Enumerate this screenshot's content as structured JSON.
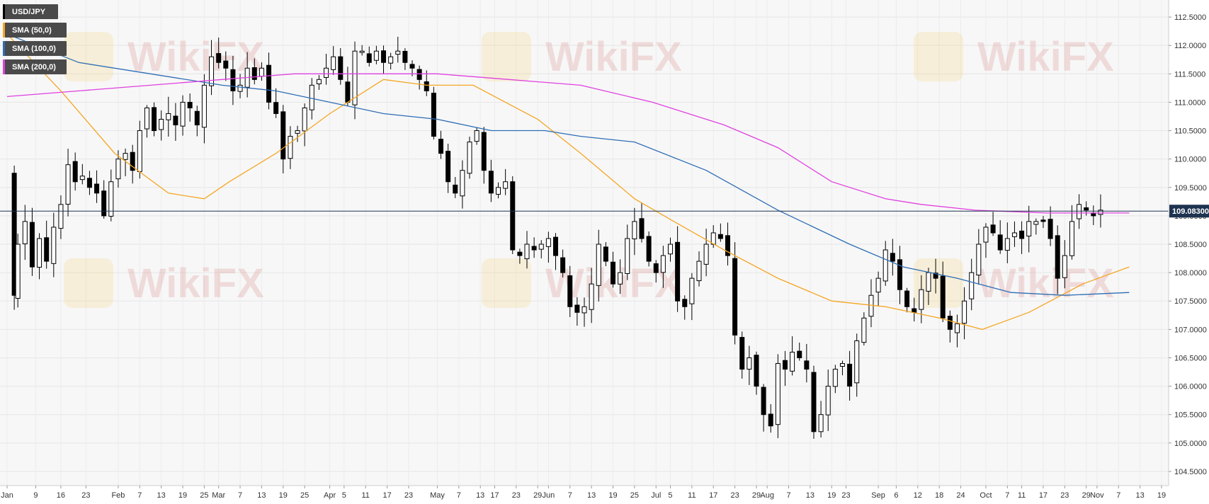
{
  "legend": {
    "symbol": "USD/JPY",
    "items": [
      {
        "label": "SMA (50,0)",
        "color": "#f5a623"
      },
      {
        "label": "SMA (100,0)",
        "color": "#2d6db5"
      },
      {
        "label": "SMA (200,0)",
        "color": "#e040e0"
      }
    ],
    "symbol_color": "#000000"
  },
  "watermark": {
    "text": "WikiFX"
  },
  "price_tag": {
    "label": "109.08300",
    "value": 109.083,
    "color": "#1e3350"
  },
  "chart_data": {
    "type": "candlestick",
    "title": "",
    "xlabel": "",
    "ylabel": "",
    "ylim": [
      104.25,
      112.8
    ],
    "grid": true,
    "y_ticks": [
      104.5,
      105.0,
      105.5,
      106.0,
      106.5,
      107.0,
      107.5,
      108.0,
      108.5,
      109.0,
      109.5,
      110.0,
      110.5,
      111.0,
      111.5,
      112.0,
      112.5
    ],
    "y_tick_labels": [
      "104.5000",
      "105.0000",
      "105.5000",
      "106.0000",
      "106.5000",
      "107.0000",
      "107.5000",
      "108.0000",
      "108.5000",
      "109.0000",
      "109.5000",
      "110.0000",
      "110.5000",
      "111.0000",
      "111.5000",
      "112.0000",
      "112.5000"
    ],
    "x_ticks": [
      {
        "label": "Jan",
        "day": 0
      },
      {
        "label": "9",
        "day": 8
      },
      {
        "label": "16",
        "day": 15
      },
      {
        "label": "23",
        "day": 22
      },
      {
        "label": "Feb",
        "day": 31
      },
      {
        "label": "7",
        "day": 37
      },
      {
        "label": "13",
        "day": 43
      },
      {
        "label": "19",
        "day": 49
      },
      {
        "label": "25",
        "day": 55
      },
      {
        "label": "Mar",
        "day": 59
      },
      {
        "label": "7",
        "day": 65
      },
      {
        "label": "13",
        "day": 71
      },
      {
        "label": "19",
        "day": 77
      },
      {
        "label": "25",
        "day": 83
      },
      {
        "label": "Apr",
        "day": 90
      },
      {
        "label": "5",
        "day": 94
      },
      {
        "label": "11",
        "day": 100
      },
      {
        "label": "17",
        "day": 106
      },
      {
        "label": "23",
        "day": 112
      },
      {
        "label": "May",
        "day": 120
      },
      {
        "label": "7",
        "day": 126
      },
      {
        "label": "13",
        "day": 132
      },
      {
        "label": "17",
        "day": 136
      },
      {
        "label": "23",
        "day": 142
      },
      {
        "label": "29",
        "day": 148
      },
      {
        "label": "Jun",
        "day": 151
      },
      {
        "label": "7",
        "day": 157
      },
      {
        "label": "13",
        "day": 163
      },
      {
        "label": "19",
        "day": 169
      },
      {
        "label": "25",
        "day": 175
      },
      {
        "label": "Jul",
        "day": 181
      },
      {
        "label": "5",
        "day": 185
      },
      {
        "label": "11",
        "day": 191
      },
      {
        "label": "17",
        "day": 197
      },
      {
        "label": "23",
        "day": 203
      },
      {
        "label": "29",
        "day": 209
      },
      {
        "label": "Aug",
        "day": 212
      },
      {
        "label": "7",
        "day": 218
      },
      {
        "label": "13",
        "day": 224
      },
      {
        "label": "19",
        "day": 230
      },
      {
        "label": "23",
        "day": 234
      },
      {
        "label": "Sep",
        "day": 243
      },
      {
        "label": "6",
        "day": 248
      },
      {
        "label": "12",
        "day": 254
      },
      {
        "label": "18",
        "day": 260
      },
      {
        "label": "24",
        "day": 266
      },
      {
        "label": "Oct",
        "day": 273
      },
      {
        "label": "7",
        "day": 279
      },
      {
        "label": "11",
        "day": 283
      },
      {
        "label": "17",
        "day": 289
      },
      {
        "label": "23",
        "day": 295
      },
      {
        "label": "29",
        "day": 301
      },
      {
        "label": "Nov",
        "day": 304
      },
      {
        "label": "7",
        "day": 310
      },
      {
        "label": "13",
        "day": 316
      },
      {
        "label": "19",
        "day": 322
      }
    ],
    "x_range": [
      0,
      322
    ],
    "price_path": [
      [
        1,
        109.7
      ],
      [
        2,
        107.6
      ],
      [
        3,
        108.5
      ],
      [
        5,
        108.9
      ],
      [
        7,
        108.1
      ],
      [
        9,
        108.6
      ],
      [
        11,
        108.2
      ],
      [
        13,
        108.8
      ],
      [
        15,
        109.2
      ],
      [
        17,
        109.9
      ],
      [
        19,
        109.6
      ],
      [
        21,
        109.7
      ],
      [
        23,
        109.5
      ],
      [
        25,
        109.4
      ],
      [
        27,
        109.0
      ],
      [
        29,
        109.6
      ],
      [
        31,
        110.0
      ],
      [
        33,
        110.1
      ],
      [
        35,
        109.8
      ],
      [
        37,
        110.5
      ],
      [
        39,
        110.9
      ],
      [
        41,
        110.5
      ],
      [
        43,
        110.7
      ],
      [
        45,
        110.8
      ],
      [
        47,
        110.6
      ],
      [
        49,
        111.0
      ],
      [
        51,
        110.9
      ],
      [
        53,
        110.6
      ],
      [
        55,
        111.3
      ],
      [
        57,
        111.8
      ],
      [
        59,
        111.7
      ],
      [
        61,
        111.6
      ],
      [
        63,
        111.2
      ],
      [
        65,
        111.3
      ],
      [
        67,
        111.6
      ],
      [
        69,
        111.4
      ],
      [
        71,
        111.6
      ],
      [
        73,
        111.0
      ],
      [
        75,
        110.8
      ],
      [
        77,
        110.0
      ],
      [
        79,
        110.4
      ],
      [
        81,
        110.5
      ],
      [
        83,
        110.9
      ],
      [
        85,
        111.3
      ],
      [
        87,
        111.4
      ],
      [
        89,
        111.6
      ],
      [
        91,
        111.8
      ],
      [
        93,
        111.4
      ],
      [
        95,
        111.0
      ],
      [
        97,
        111.9
      ],
      [
        99,
        111.9
      ],
      [
        101,
        111.7
      ],
      [
        103,
        111.9
      ],
      [
        105,
        111.7
      ],
      [
        107,
        111.8
      ],
      [
        109,
        111.9
      ],
      [
        111,
        111.7
      ],
      [
        113,
        111.6
      ],
      [
        115,
        111.4
      ],
      [
        117,
        111.2
      ],
      [
        119,
        110.4
      ],
      [
        121,
        110.1
      ],
      [
        123,
        109.6
      ],
      [
        125,
        109.4
      ],
      [
        127,
        109.8
      ],
      [
        129,
        110.3
      ],
      [
        131,
        110.5
      ],
      [
        133,
        109.8
      ],
      [
        135,
        109.4
      ],
      [
        137,
        109.5
      ],
      [
        139,
        109.6
      ],
      [
        141,
        108.4
      ],
      [
        143,
        108.3
      ],
      [
        145,
        108.5
      ],
      [
        147,
        108.4
      ],
      [
        149,
        108.5
      ],
      [
        151,
        108.6
      ],
      [
        153,
        108.3
      ],
      [
        155,
        108.0
      ],
      [
        157,
        107.4
      ],
      [
        159,
        107.3
      ],
      [
        161,
        107.4
      ],
      [
        163,
        107.8
      ],
      [
        165,
        108.5
      ],
      [
        167,
        108.2
      ],
      [
        169,
        107.8
      ],
      [
        171,
        108.0
      ],
      [
        173,
        108.6
      ],
      [
        175,
        108.9
      ],
      [
        177,
        108.6
      ],
      [
        179,
        108.2
      ],
      [
        181,
        108.0
      ],
      [
        183,
        108.3
      ],
      [
        185,
        108.5
      ],
      [
        187,
        107.5
      ],
      [
        189,
        107.4
      ],
      [
        191,
        107.9
      ],
      [
        193,
        108.2
      ],
      [
        195,
        108.5
      ],
      [
        197,
        108.7
      ],
      [
        199,
        108.6
      ],
      [
        201,
        108.3
      ],
      [
        203,
        106.9
      ],
      [
        205,
        106.3
      ],
      [
        207,
        106.5
      ],
      [
        209,
        106.0
      ],
      [
        211,
        105.5
      ],
      [
        213,
        105.3
      ],
      [
        215,
        106.4
      ],
      [
        217,
        106.3
      ],
      [
        219,
        106.6
      ],
      [
        221,
        106.5
      ],
      [
        223,
        106.3
      ],
      [
        225,
        105.2
      ],
      [
        227,
        105.5
      ],
      [
        229,
        106.0
      ],
      [
        231,
        106.3
      ],
      [
        233,
        106.4
      ],
      [
        235,
        106.0
      ],
      [
        237,
        106.8
      ],
      [
        239,
        107.2
      ],
      [
        241,
        107.6
      ],
      [
        243,
        107.9
      ],
      [
        245,
        108.4
      ],
      [
        247,
        108.2
      ],
      [
        249,
        107.7
      ],
      [
        251,
        107.4
      ],
      [
        253,
        107.3
      ],
      [
        255,
        107.7
      ],
      [
        257,
        108.0
      ],
      [
        259,
        107.9
      ],
      [
        261,
        107.2
      ],
      [
        263,
        107.0
      ],
      [
        265,
        107.1
      ],
      [
        267,
        107.5
      ],
      [
        269,
        108.0
      ],
      [
        271,
        108.5
      ],
      [
        273,
        108.8
      ],
      [
        275,
        108.7
      ],
      [
        277,
        108.4
      ],
      [
        279,
        108.6
      ],
      [
        281,
        108.7
      ],
      [
        283,
        108.6
      ],
      [
        285,
        108.9
      ],
      [
        287,
        108.9
      ],
      [
        289,
        108.9
      ],
      [
        291,
        108.6
      ],
      [
        293,
        107.9
      ],
      [
        295,
        108.3
      ],
      [
        297,
        108.9
      ],
      [
        299,
        109.2
      ],
      [
        301,
        109.1
      ],
      [
        303,
        109.0
      ],
      [
        305,
        109.1
      ]
    ],
    "series": [
      {
        "name": "SMA (50,0)",
        "color": "#f5a623",
        "values": [
          [
            0,
            112.2
          ],
          [
            15,
            111.2
          ],
          [
            30,
            110.1
          ],
          [
            45,
            109.4
          ],
          [
            55,
            109.3
          ],
          [
            62,
            109.6
          ],
          [
            75,
            110.1
          ],
          [
            90,
            110.8
          ],
          [
            105,
            111.4
          ],
          [
            117,
            111.3
          ],
          [
            130,
            111.3
          ],
          [
            148,
            110.7
          ],
          [
            160,
            110.1
          ],
          [
            175,
            109.3
          ],
          [
            186,
            108.9
          ],
          [
            200,
            108.4
          ],
          [
            215,
            107.9
          ],
          [
            230,
            107.5
          ],
          [
            245,
            107.4
          ],
          [
            260,
            107.2
          ],
          [
            272,
            107.0
          ],
          [
            285,
            107.3
          ],
          [
            300,
            107.8
          ],
          [
            313,
            108.1
          ]
        ]
      },
      {
        "name": "SMA (100,0)",
        "color": "#2d6db5",
        "values": [
          [
            0,
            112.2
          ],
          [
            20,
            111.7
          ],
          [
            40,
            111.5
          ],
          [
            60,
            111.3
          ],
          [
            75,
            111.2
          ],
          [
            90,
            111.0
          ],
          [
            105,
            110.8
          ],
          [
            120,
            110.7
          ],
          [
            135,
            110.5
          ],
          [
            150,
            110.5
          ],
          [
            160,
            110.4
          ],
          [
            175,
            110.3
          ],
          [
            195,
            109.8
          ],
          [
            215,
            109.1
          ],
          [
            235,
            108.5
          ],
          [
            250,
            108.1
          ],
          [
            265,
            107.9
          ],
          [
            280,
            107.65
          ],
          [
            295,
            107.6
          ],
          [
            313,
            107.65
          ]
        ]
      },
      {
        "name": "SMA (200,0)",
        "color": "#e040e0",
        "values": [
          [
            0,
            111.1
          ],
          [
            20,
            111.2
          ],
          [
            40,
            111.3
          ],
          [
            60,
            111.4
          ],
          [
            80,
            111.5
          ],
          [
            100,
            111.5
          ],
          [
            120,
            111.5
          ],
          [
            140,
            111.4
          ],
          [
            160,
            111.3
          ],
          [
            180,
            111.0
          ],
          [
            200,
            110.6
          ],
          [
            215,
            110.2
          ],
          [
            230,
            109.6
          ],
          [
            245,
            109.3
          ],
          [
            255,
            109.2
          ],
          [
            270,
            109.1
          ],
          [
            290,
            109.05
          ],
          [
            313,
            109.05
          ]
        ]
      }
    ]
  }
}
